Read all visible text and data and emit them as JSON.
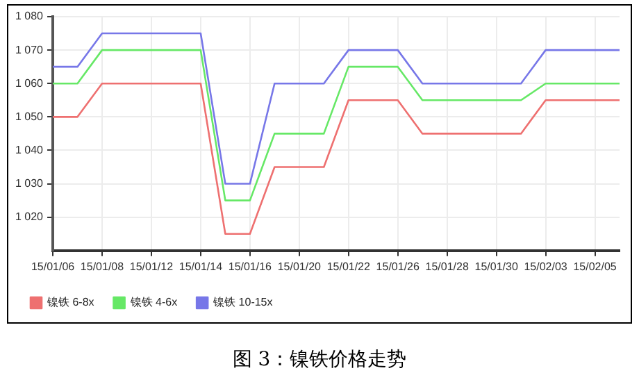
{
  "chart_data": {
    "type": "line",
    "title": "图 3：镍铁价格走势",
    "categories": [
      "15/01/06",
      null,
      "15/01/08",
      null,
      "15/01/12",
      null,
      "15/01/14",
      null,
      "15/01/16",
      null,
      "15/01/20",
      null,
      "15/01/22",
      null,
      "15/01/26",
      null,
      "15/01/28",
      null,
      "15/01/30",
      null,
      "15/02/03",
      null,
      "15/02/05",
      null
    ],
    "series": [
      {
        "name": "镍铁 6-8x",
        "color": "#ee7070",
        "values": [
          1050,
          1050,
          1060,
          1060,
          1060,
          1060,
          1060,
          1015,
          1015,
          1035,
          1035,
          1035,
          1055,
          1055,
          1055,
          1045,
          1045,
          1045,
          1045,
          1045,
          1055,
          1055,
          1055,
          1055
        ]
      },
      {
        "name": "镍铁 4-6x",
        "color": "#66e866",
        "values": [
          1060,
          1060,
          1070,
          1070,
          1070,
          1070,
          1070,
          1025,
          1025,
          1045,
          1045,
          1045,
          1065,
          1065,
          1065,
          1055,
          1055,
          1055,
          1055,
          1055,
          1060,
          1060,
          1060,
          1060
        ]
      },
      {
        "name": "镍铁 10-15x",
        "color": "#7777e8",
        "values": [
          1065,
          1065,
          1075,
          1075,
          1075,
          1075,
          1075,
          1030,
          1030,
          1060,
          1060,
          1060,
          1070,
          1070,
          1070,
          1060,
          1060,
          1060,
          1060,
          1060,
          1070,
          1070,
          1070,
          1070
        ]
      }
    ],
    "ylim": [
      1010,
      1080
    ],
    "yticks": [
      {
        "value": 1020,
        "label": "1 020"
      },
      {
        "value": 1030,
        "label": "1 030"
      },
      {
        "value": 1040,
        "label": "1 040"
      },
      {
        "value": 1050,
        "label": "1 050"
      },
      {
        "value": 1060,
        "label": "1 060"
      },
      {
        "value": 1070,
        "label": "1 070"
      },
      {
        "value": 1080,
        "label": "1 080"
      }
    ],
    "grid": true,
    "legend": "bottom left",
    "marker": "none",
    "line_style": "solid"
  }
}
